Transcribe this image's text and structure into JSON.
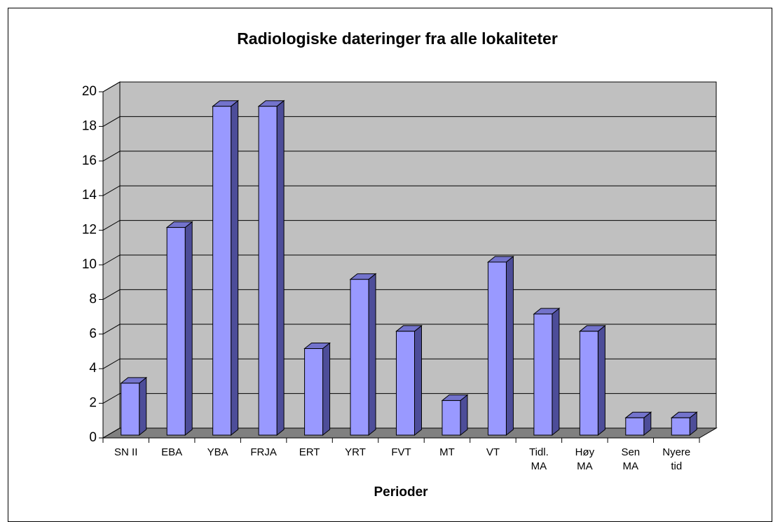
{
  "chart_data": {
    "type": "bar3d",
    "title": "Radiologiske dateringer fra alle lokaliteter",
    "x_label": "Perioder",
    "categories": [
      "SN II",
      "EBA",
      "YBA",
      "FRJA",
      "ERT",
      "YRT",
      "FVT",
      "MT",
      "VT",
      "Tidl. MA",
      "Høy MA",
      "Sen MA",
      "Nyere tid"
    ],
    "values": [
      3,
      12,
      19,
      19,
      5,
      9,
      6,
      2,
      10,
      7,
      6,
      1,
      1
    ],
    "color": "#9999ff",
    "ylim": [
      0,
      20
    ],
    "yticks": [
      0,
      2,
      4,
      6,
      8,
      10,
      12,
      14,
      16,
      18,
      20
    ],
    "grid": true
  }
}
